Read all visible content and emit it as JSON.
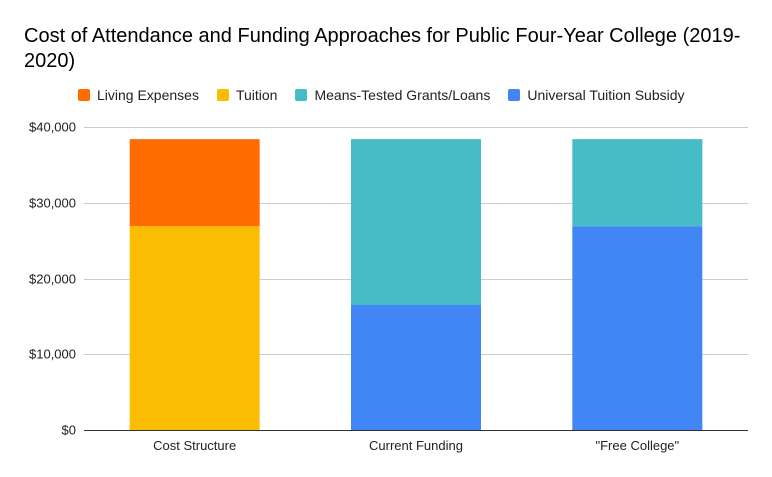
{
  "chart_data": {
    "type": "bar",
    "stacked": true,
    "title": "Cost of Attendance and Funding Approaches for Public Four-Year College (2019-2020)",
    "xlabel": "",
    "ylabel": "",
    "categories": [
      "Cost Structure",
      "Current Funding",
      "\"Free College\""
    ],
    "series": [
      {
        "name": "Universal Tuition Subsidy",
        "color": "#4285f4",
        "values": [
          0,
          16500,
          26900
        ]
      },
      {
        "name": "Means-Tested Grants/Loans",
        "color": "#46bdc6",
        "values": [
          0,
          21900,
          11500
        ]
      },
      {
        "name": "Tuition",
        "color": "#fbbc04",
        "values": [
          26900,
          0,
          0
        ]
      },
      {
        "name": "Living Expenses",
        "color": "#ff6d01",
        "values": [
          11500,
          0,
          0
        ]
      }
    ],
    "legend_order": [
      "Living Expenses",
      "Tuition",
      "Means-Tested Grants/Loans",
      "Universal Tuition Subsidy"
    ],
    "legend_position": "top",
    "ylim": [
      0,
      40000
    ],
    "yticks": [
      0,
      10000,
      20000,
      30000,
      40000
    ],
    "ytick_labels": [
      "$0",
      "$10,000",
      "$20,000",
      "$30,000",
      "$40,000"
    ],
    "grid": true
  }
}
